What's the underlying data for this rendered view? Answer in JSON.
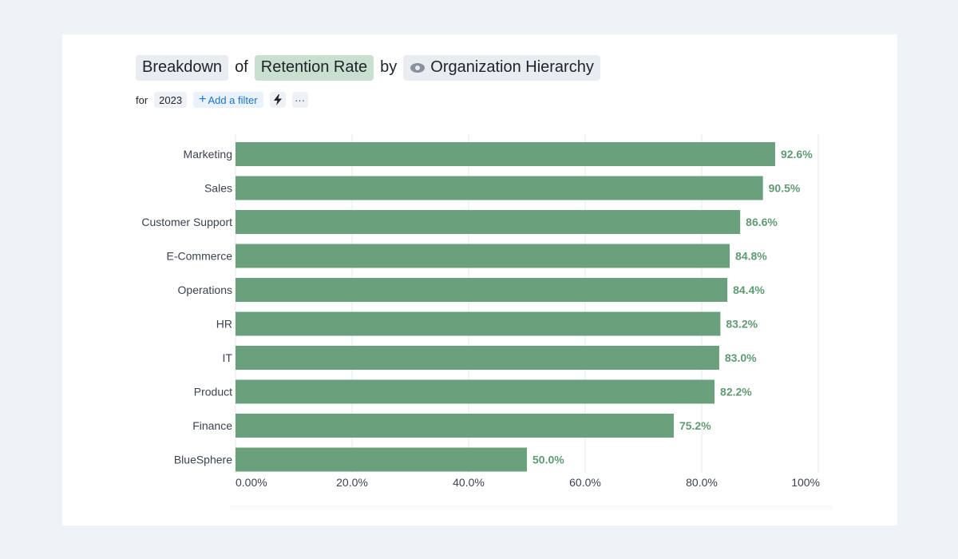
{
  "header": {
    "word_breakdown": "Breakdown",
    "word_of": "of",
    "metric": "Retention Rate",
    "word_by": "by",
    "dimension": "Organization Hierarchy",
    "dimension_icon": "eye-icon"
  },
  "filters": {
    "for_label": "for",
    "year": "2023",
    "add_filter": "Add a filter",
    "lightning_icon": "lightning-icon",
    "more_icon": "more-icon",
    "more_glyph": "···"
  },
  "colors": {
    "bar": "#6ba07c",
    "label": "#5f9b72",
    "axis_text": "#3b4250",
    "grid": "#e6e8eb",
    "metric_pill": "#c9dfd0"
  },
  "chart_data": {
    "type": "bar",
    "orientation": "horizontal",
    "title": "Breakdown of Retention Rate by Organization Hierarchy",
    "categories": [
      "Marketing",
      "Sales",
      "Customer Support",
      "E-Commerce",
      "Operations",
      "HR",
      "IT",
      "Product",
      "Finance",
      "BlueSphere"
    ],
    "values": [
      92.6,
      90.5,
      86.6,
      84.8,
      84.4,
      83.2,
      83.0,
      82.2,
      75.2,
      50.0
    ],
    "value_labels": [
      "92.6%",
      "90.5%",
      "86.6%",
      "84.8%",
      "84.4%",
      "83.2%",
      "83.0%",
      "82.2%",
      "75.2%",
      "50.0%"
    ],
    "xlim": [
      0,
      100
    ],
    "xticks": [
      0,
      20,
      40,
      60,
      80,
      100
    ],
    "xtick_labels": [
      "0.00%",
      "20.0%",
      "40.0%",
      "60.0%",
      "80.0%",
      "100%"
    ],
    "grid": true,
    "xlabel": "",
    "ylabel": ""
  }
}
